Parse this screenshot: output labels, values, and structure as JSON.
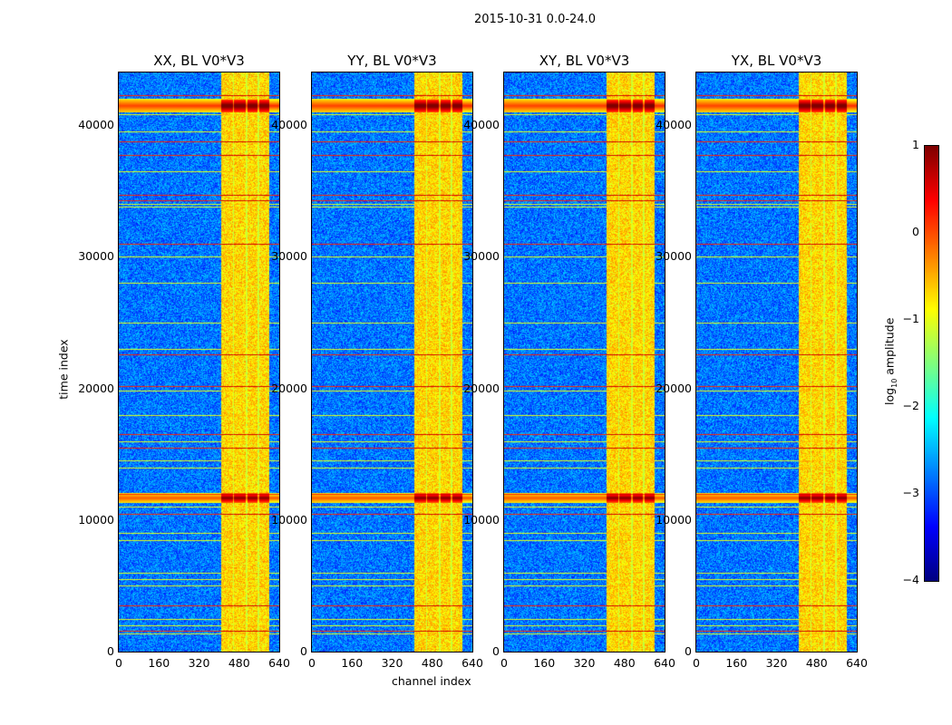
{
  "chart_data": {
    "type": "heatmap",
    "title": "2015-10-31 0.0-24.0",
    "xlabel": "channel index",
    "ylabel": "time index",
    "xlim": [
      0,
      640
    ],
    "ylim": [
      0,
      44000
    ],
    "xticks": [
      "0",
      "160",
      "320",
      "480",
      "640"
    ],
    "yticks": [
      "0",
      "10000",
      "20000",
      "30000",
      "40000"
    ],
    "panels": [
      {
        "title": "XX, BL V0*V3"
      },
      {
        "title": "YY, BL V0*V3"
      },
      {
        "title": "XY, BL V0*V3"
      },
      {
        "title": "YX, BL V0*V3"
      }
    ],
    "colorbar": {
      "label_prefix": "log",
      "label_sub": "10",
      "label_suffix": " amplitude",
      "range": [
        -4,
        1
      ],
      "ticks": [
        "1",
        "0",
        "−1",
        "−2",
        "−3",
        "−4"
      ],
      "colormap": "jet"
    },
    "background_level": -2.8,
    "hot_channel_bands": [
      [
        405,
        455
      ],
      [
        459,
        503
      ],
      [
        510,
        553
      ],
      [
        557,
        600
      ]
    ],
    "band_level": -0.7,
    "strong_rows": [
      {
        "t": 41500,
        "w": 500,
        "level": 0.4
      },
      {
        "t": 11700,
        "w": 400,
        "level": 0.2
      }
    ],
    "red_rows": [
      42300,
      38800,
      37700,
      34700,
      34300,
      31000,
      22600,
      20200,
      16500,
      15500,
      12000,
      10500,
      3500,
      1600
    ],
    "yellow_rows": [
      42000,
      40800,
      39500,
      36500,
      34000,
      33800,
      30000,
      28000,
      25000,
      23000,
      19800,
      18000,
      16000,
      14500,
      14000,
      11000,
      9000,
      8500,
      6000,
      5500,
      5000,
      2500,
      2000,
      1400
    ]
  }
}
